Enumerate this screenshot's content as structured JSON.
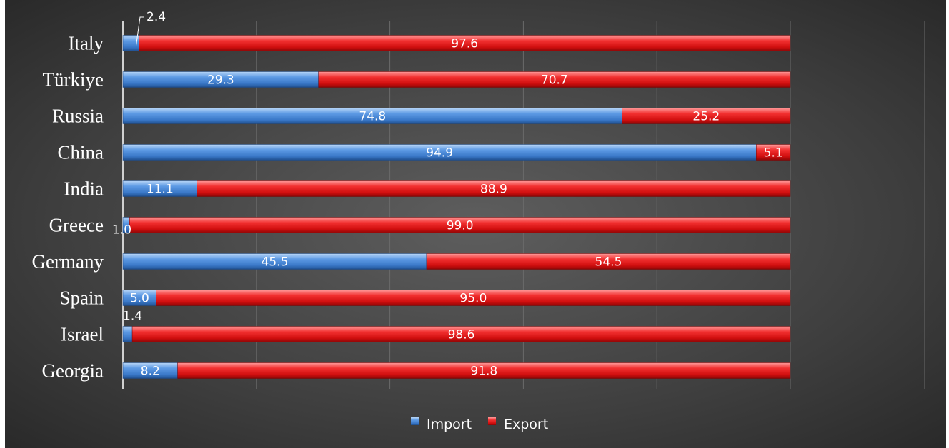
{
  "chart_data": {
    "type": "bar",
    "orientation": "horizontal",
    "stacked": "percent",
    "title": "",
    "xlabel": "",
    "ylabel": "",
    "xlim": [
      0,
      100
    ],
    "grid": "vertical",
    "legend_position": "bottom",
    "categories": [
      "Italy",
      "Türkiye",
      "Russia",
      "China",
      "India",
      "Greece",
      "Germany",
      "Spain",
      "Israel",
      "Georgia"
    ],
    "series": [
      {
        "name": "Import",
        "color": "#3a78c8",
        "values": [
          2.4,
          29.3,
          74.8,
          94.9,
          11.1,
          1.0,
          45.5,
          5.0,
          1.4,
          8.2
        ],
        "labels": [
          "2.4",
          "29.3",
          "74.8",
          "94.9",
          "11.1",
          "1.0",
          "45.5",
          "5.0",
          "1.4",
          "8.2"
        ]
      },
      {
        "name": "Export",
        "color": "#e01515",
        "values": [
          97.6,
          70.7,
          25.2,
          5.1,
          88.9,
          99.0,
          54.5,
          95.0,
          98.6,
          91.8
        ],
        "labels": [
          "97.6",
          "70.7",
          "25.2",
          "5.1",
          "88.9",
          "99.0",
          "54.5",
          "95.0",
          "98.6",
          "91.8"
        ]
      }
    ],
    "background": "#3e3e3e"
  }
}
